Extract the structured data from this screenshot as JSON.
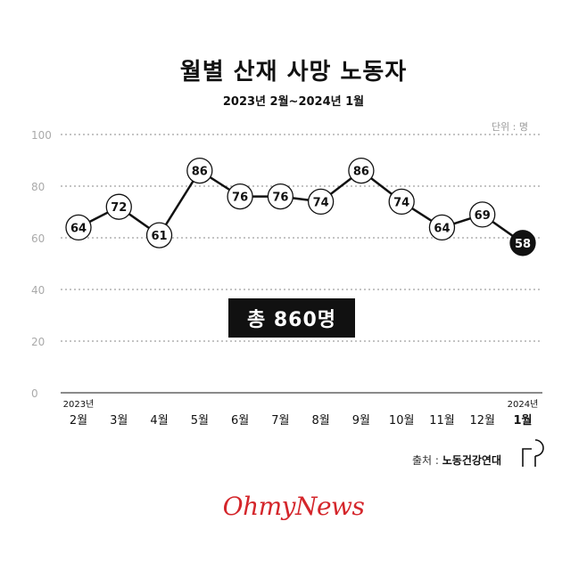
{
  "header": {
    "title": "월별 산재 사망 노동자",
    "subtitle": "2023년 2월~2024년 1월",
    "unit": "단위 : 명"
  },
  "chart_data": {
    "type": "line",
    "title": "월별 산재 사망 노동자",
    "subtitle": "2023년 2월~2024년 1월",
    "categories": [
      "2월",
      "3월",
      "4월",
      "5월",
      "6월",
      "7월",
      "8월",
      "9월",
      "10월",
      "11월",
      "12월",
      "1월"
    ],
    "year_labels": [
      {
        "index": 0,
        "label": "2023년"
      },
      {
        "index": 11,
        "label": "2024년"
      }
    ],
    "series": [
      {
        "values": [
          64,
          72,
          61,
          86,
          76,
          76,
          74,
          86,
          74,
          64,
          69,
          58
        ]
      }
    ],
    "yticks": [
      0,
      20,
      40,
      60,
      80,
      100
    ],
    "ylim": [
      0,
      100
    ],
    "grid": true,
    "highlight_last": true,
    "colors": {
      "line": "#111111",
      "marker_fill": "#ffffff",
      "highlight_fill": "#111111",
      "grid": "#888888"
    }
  },
  "summary": {
    "total": "총 860명"
  },
  "source": {
    "label": "출처 :",
    "value": "노동건강연대"
  },
  "brand": {
    "logo_text": "OhmyNews",
    "color": "#d4262b"
  }
}
